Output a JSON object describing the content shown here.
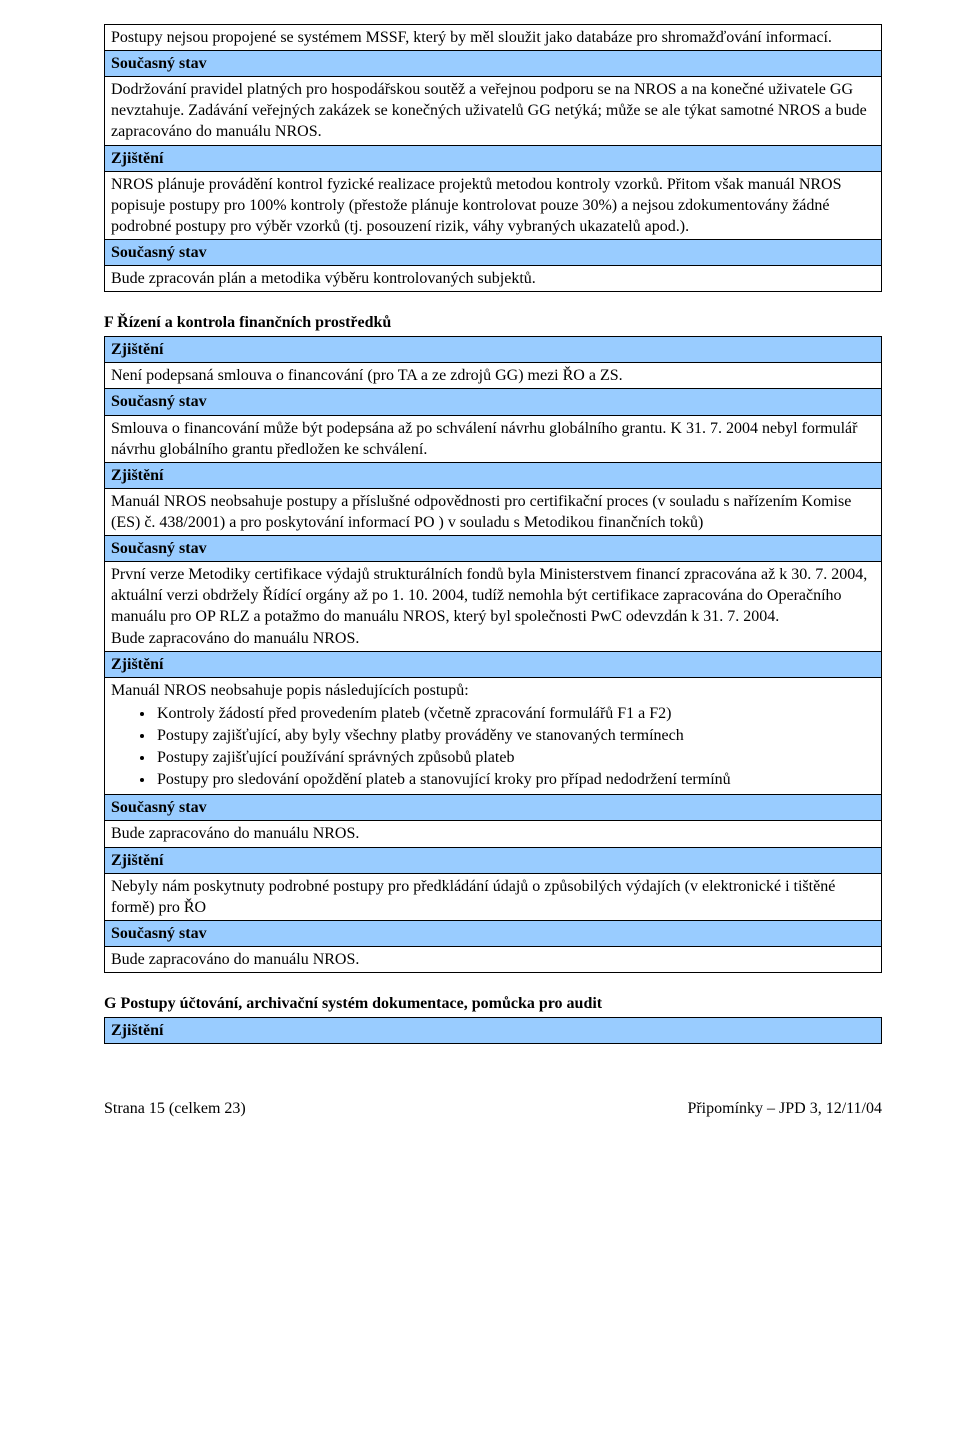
{
  "labels": {
    "zjisteni": "Zjištění",
    "soucasny_stav": "Současný stav"
  },
  "table1": {
    "r1": "Postupy nejsou propojené se systémem MSSF, který by měl sloužit jako databáze pro shromažďování informací.",
    "r2": "Dodržování pravidel platných pro hospodářskou soutěž a veřejnou podporu se na NROS a na konečné uživatele GG nevztahuje. Zadávání veřejných zakázek se konečných uživatelů GG netýká; může se ale týkat samotné NROS a bude zapracováno do manuálu NROS.",
    "r3": "NROS plánuje provádění kontrol fyzické realizace projektů metodou kontroly vzorků. Přitom však manuál NROS popisuje postupy pro 100% kontroly (přestože plánuje kontrolovat pouze 30%) a nejsou zdokumentovány žádné podrobné postupy pro výběr vzorků (tj. posouzení rizik, váhy vybraných ukazatelů apod.).",
    "r4": "Bude zpracován plán a metodika výběru kontrolovaných subjektů."
  },
  "sectionF": {
    "heading": "F Řízení a kontrola finančních prostředků",
    "r1": " Není podepsaná smlouva o financování (pro TA a ze zdrojů GG) mezi ŘO a ZS.",
    "r2": "Smlouva o financování může být podepsána až po schválení návrhu globálního grantu. K 31. 7. 2004 nebyl formulář návrhu globálního grantu předložen ke schválení.",
    "r3": "Manuál NROS neobsahuje postupy a příslušné odpovědnosti pro certifikační proces (v souladu s nařízením Komise (ES) č. 438/2001) a pro poskytování informací PO ) v souladu s Metodikou finančních toků)",
    "r4a": "První verze Metodiky certifikace výdajů strukturálních fondů byla Ministerstvem financí zpracována až k 30. 7. 2004, aktuální verzi obdržely Řídící orgány až po 1. 10. 2004, tudíž nemohla být certifikace zapracována do Operačního manuálu pro OP RLZ a potažmo do manuálu NROS, který byl společnosti PwC odevzdán k 31. 7. 2004.",
    "r4b": "Bude zapracováno do manuálu NROS.",
    "r5_intro": "Manuál NROS neobsahuje popis následujících postupů:",
    "r5_items": [
      "Kontroly žádostí před provedením plateb (včetně zpracování formulářů F1 a F2)",
      "Postupy zajišťující, aby byly všechny platby prováděny ve stanovaných termínech",
      "Postupy zajišťující používání správných způsobů plateb",
      "Postupy pro sledování opoždění plateb a stanovující kroky pro případ nedodržení termínů"
    ],
    "r6": "Bude zapracováno do manuálu NROS.",
    "r7": " Nebyly nám poskytnuty podrobné postupy pro předkládání údajů o způsobilých výdajích (v elektronické i tištěné formě) pro ŘO",
    "r8": "Bude zapracováno do manuálu NROS."
  },
  "sectionG": {
    "heading": "G Postupy účtování, archivační systém dokumentace, pomůcka pro audit"
  },
  "footer": {
    "left": "Strana 15 (celkem 23)",
    "right": "Připomínky – JPD 3, 12/11/04"
  }
}
